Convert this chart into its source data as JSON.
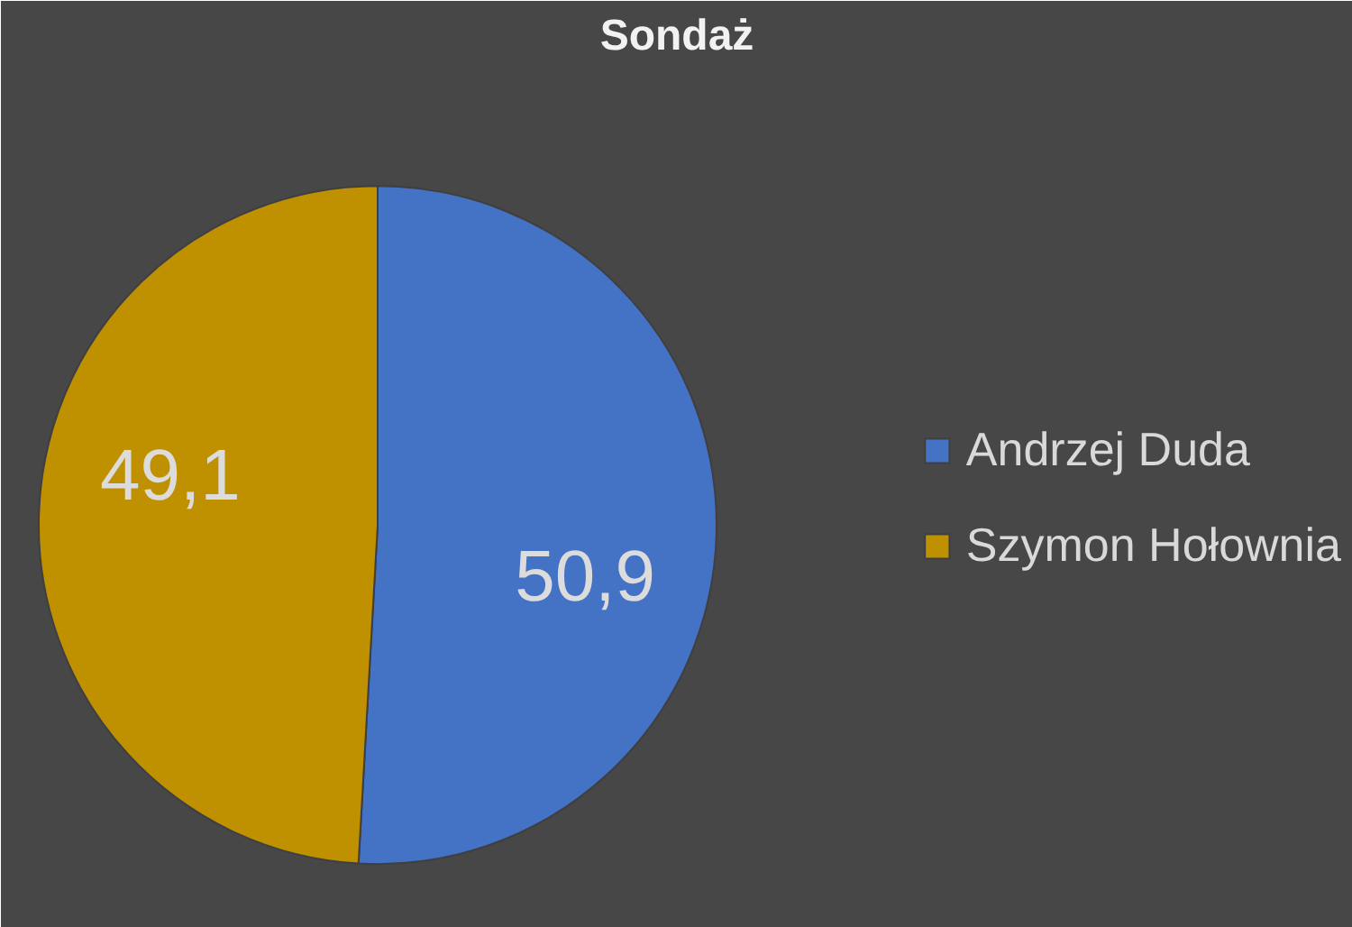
{
  "chart_data": {
    "type": "pie",
    "title": "Sondaż",
    "categories": [
      "Andrzej Duda",
      "Szymon Hołownia"
    ],
    "values": [
      50.9,
      49.1
    ],
    "colors": [
      "#4472c4",
      "#bf9000"
    ],
    "value_labels": [
      "50,9",
      "49,1"
    ],
    "legend": "right"
  }
}
